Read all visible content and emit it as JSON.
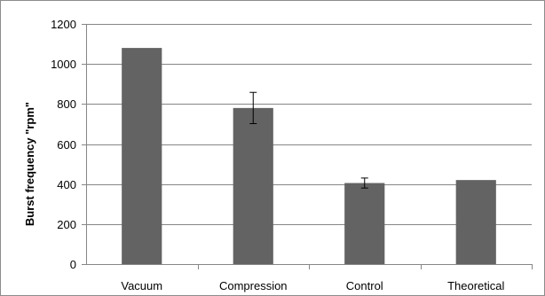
{
  "chart_data": {
    "type": "bar",
    "title": "",
    "xlabel": "",
    "ylabel": "Burst frequency \"rpm\"",
    "categories": [
      "Vacuum",
      "Compression",
      "Control",
      "Theoretical"
    ],
    "values": [
      1080,
      780,
      405,
      420
    ],
    "error_bars": [
      null,
      78,
      25,
      null
    ],
    "ylim": [
      0,
      1200
    ],
    "yticks": [
      0,
      200,
      400,
      600,
      800,
      1000,
      1200
    ],
    "grid": true,
    "legend": "none",
    "bar_color": "#636363",
    "grid_color": "#868686"
  }
}
